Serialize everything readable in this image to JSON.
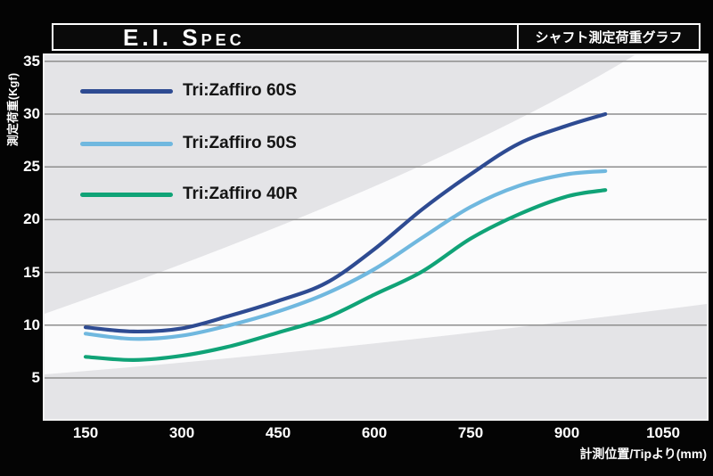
{
  "header": {
    "title": "E.I. Spec",
    "subtitle": "シャフト測定荷重グラフ"
  },
  "chart_data": {
    "type": "line",
    "title": "E.I. Spec",
    "xlabel": "計測位置/Tipより(mm)",
    "ylabel": "測定荷重(Kgf)",
    "x": [
      150,
      225,
      300,
      375,
      450,
      525,
      600,
      675,
      750,
      825,
      900,
      960
    ],
    "x_ticks": [
      150,
      300,
      450,
      600,
      750,
      900,
      1050
    ],
    "y_ticks": [
      35,
      30,
      25,
      20,
      15,
      10,
      5
    ],
    "xlim": [
      88,
      1115
    ],
    "ylim": [
      1,
      35.5
    ],
    "grid": "horizontal",
    "legend_position": "top-left",
    "series": [
      {
        "name": "Tri:Zaffiro 60S",
        "color": "#2e4b92",
        "values": [
          9.8,
          9.4,
          9.7,
          10.9,
          12.3,
          14.0,
          17.2,
          21.0,
          24.3,
          27.2,
          28.9,
          30.0
        ]
      },
      {
        "name": "Tri:Zaffiro 50S",
        "color": "#70b8df",
        "values": [
          9.2,
          8.7,
          9.0,
          10.0,
          11.3,
          13.0,
          15.3,
          18.3,
          21.2,
          23.2,
          24.3,
          24.6
        ]
      },
      {
        "name": "Tri:Zaffiro 40R",
        "color": "#10a377",
        "values": [
          7.0,
          6.7,
          7.1,
          8.0,
          9.3,
          10.7,
          12.9,
          15.1,
          18.2,
          20.5,
          22.2,
          22.8
        ]
      }
    ]
  }
}
